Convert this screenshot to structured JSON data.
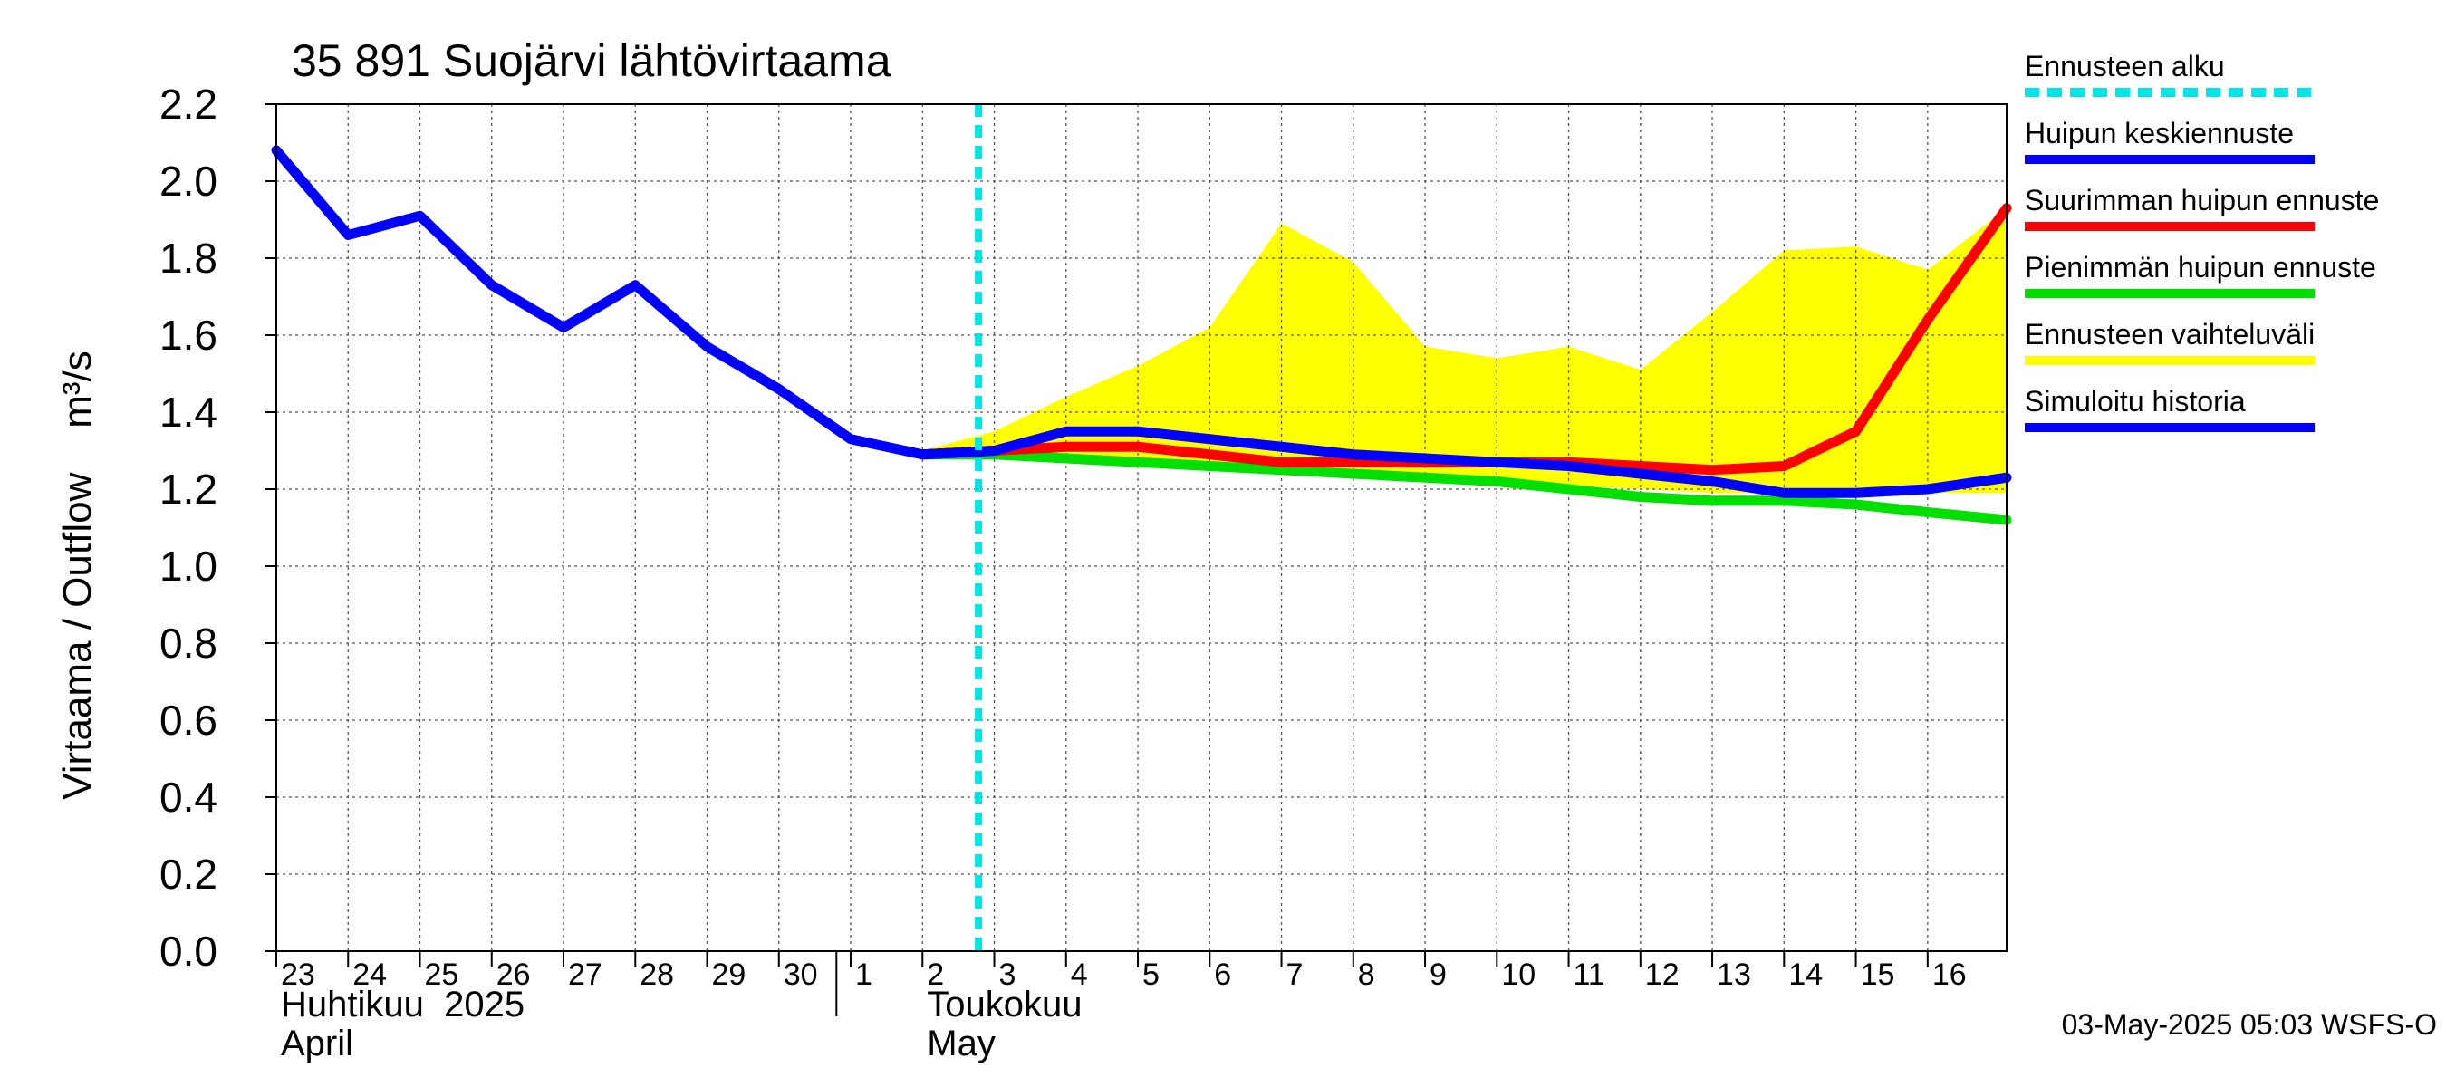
{
  "chart_data": {
    "type": "line",
    "title": "35 891 Suojärvi lähtövirtaama",
    "ylabel": "Virtaama / Outflow    m³/s",
    "ylim": [
      0.0,
      2.2
    ],
    "yticks": [
      "0.0",
      "0.2",
      "0.4",
      "0.6",
      "0.8",
      "1.0",
      "1.2",
      "1.4",
      "1.6",
      "1.8",
      "2.0",
      "2.2"
    ],
    "x_day_range": [
      23,
      47.1
    ],
    "x_tick_labels": [
      "23",
      "24",
      "25",
      "26",
      "27",
      "28",
      "29",
      "30",
      "1",
      "2",
      "3",
      "4",
      "5",
      "6",
      "7",
      "8",
      "9",
      "10",
      "11",
      "12",
      "13",
      "14",
      "15",
      "16"
    ],
    "month_labels": [
      {
        "fi": "Huhtikuu  2025",
        "en": "April",
        "start_day": 23
      },
      {
        "fi": "Toukokuu",
        "en": "May",
        "start_day": 32
      }
    ],
    "forecast_start_day": 32.78,
    "legend": [
      {
        "label": "Ennusteen alku",
        "color": "#00e5e5",
        "style": "dashed"
      },
      {
        "label": "Huipun keskiennuste",
        "color": "#0000ff",
        "style": "solid"
      },
      {
        "label": "Suurimman huipun ennuste",
        "color": "#ff0000",
        "style": "solid"
      },
      {
        "label": "Pienimmän huipun ennuste",
        "color": "#00e000",
        "style": "solid"
      },
      {
        "label": "Ennusteen vaihteluväli",
        "color": "#ffff00",
        "style": "solid"
      },
      {
        "label": "Simuloitu historia",
        "color": "#0000ff",
        "style": "solid"
      }
    ],
    "series": [
      {
        "name": "Ennusteen vaihteluväli",
        "type": "band",
        "color": "#ffff00",
        "upper": {
          "x": [
            32,
            33,
            34,
            35,
            36,
            37,
            38,
            39,
            40,
            41,
            42,
            43,
            44,
            45,
            46,
            47.1
          ],
          "y": [
            1.3,
            1.35,
            1.44,
            1.52,
            1.62,
            1.89,
            1.79,
            1.57,
            1.54,
            1.57,
            1.51,
            1.66,
            1.82,
            1.83,
            1.77,
            1.93
          ]
        },
        "lower": {
          "x": [
            32,
            33,
            34,
            35,
            36,
            37,
            38,
            39,
            40,
            41,
            42,
            43,
            44,
            45,
            46,
            47.1
          ],
          "y": [
            1.29,
            1.28,
            1.27,
            1.27,
            1.26,
            1.25,
            1.24,
            1.23,
            1.22,
            1.21,
            1.2,
            1.19,
            1.19,
            1.19,
            1.19,
            1.19
          ]
        }
      },
      {
        "name": "Pienimmän huipun ennuste",
        "color": "#00e000",
        "x": [
          32,
          33,
          34,
          35,
          36,
          37,
          38,
          39,
          40,
          41,
          42,
          43,
          44,
          45,
          46,
          47.1
        ],
        "y": [
          1.29,
          1.29,
          1.28,
          1.27,
          1.26,
          1.25,
          1.24,
          1.23,
          1.22,
          1.2,
          1.18,
          1.17,
          1.17,
          1.16,
          1.14,
          1.12
        ]
      },
      {
        "name": "Suurimman huipun ennuste",
        "color": "#ff0000",
        "x": [
          32,
          33,
          34,
          35,
          36,
          37,
          38,
          39,
          40,
          41,
          42,
          43,
          44,
          45,
          46,
          47.1
        ],
        "y": [
          1.29,
          1.3,
          1.31,
          1.31,
          1.29,
          1.27,
          1.27,
          1.27,
          1.27,
          1.27,
          1.26,
          1.25,
          1.26,
          1.35,
          1.64,
          1.93
        ]
      },
      {
        "name": "Huipun keskiennuste",
        "color": "#0000ff",
        "x": [
          32,
          33,
          34,
          35,
          36,
          37,
          38,
          39,
          40,
          41,
          42,
          43,
          44,
          45,
          46,
          47.1
        ],
        "y": [
          1.29,
          1.3,
          1.35,
          1.35,
          1.33,
          1.31,
          1.29,
          1.28,
          1.27,
          1.26,
          1.24,
          1.22,
          1.19,
          1.19,
          1.2,
          1.23
        ]
      },
      {
        "name": "Simuloitu historia",
        "color": "#0000ff",
        "x": [
          23,
          24,
          25,
          26,
          27,
          28,
          29,
          30,
          31,
          32,
          33
        ],
        "y": [
          2.08,
          1.86,
          1.91,
          1.73,
          1.62,
          1.73,
          1.57,
          1.46,
          1.33,
          1.29,
          1.3
        ]
      }
    ],
    "footer": "03-May-2025 05:03 WSFS-O"
  }
}
